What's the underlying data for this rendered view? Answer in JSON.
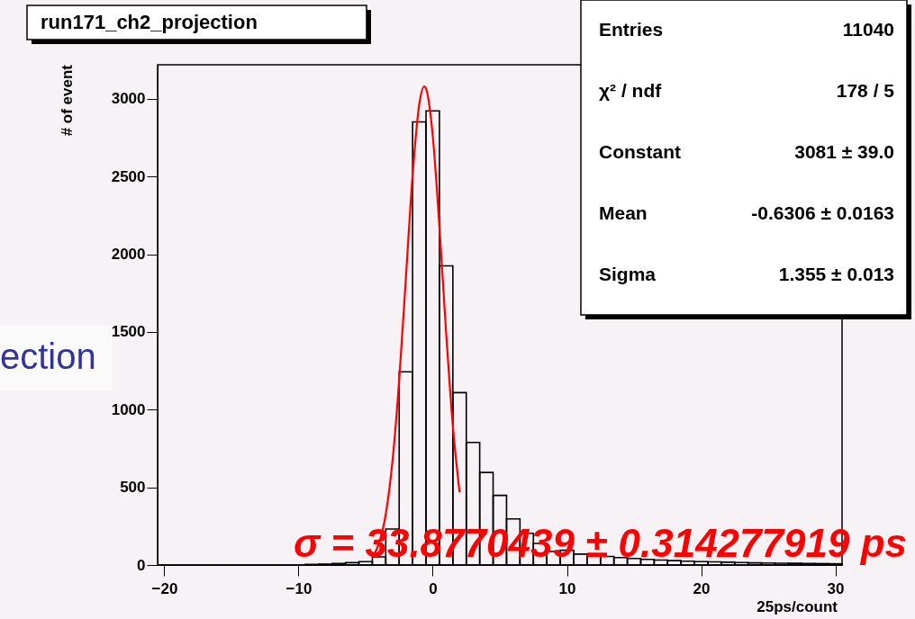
{
  "chart_data": {
    "type": "histogram",
    "title": "run171_ch2_projection",
    "xlabel": "25ps/count",
    "ylabel": "# of event",
    "color": "#000000",
    "bins": [
      -20.5,
      -19.5,
      -18.5,
      -17.5,
      -16.5,
      -15.5,
      -14.5,
      -13.5,
      -12.5,
      -11.5,
      -10.5,
      -9.5,
      -8.5,
      -7.5,
      -6.5,
      -5.5,
      -4.5,
      -3.5,
      -2.5,
      -1.5,
      -0.5,
      0.5,
      1.5,
      2.5,
      3.5,
      4.5,
      5.5,
      6.5,
      7.5,
      8.5,
      9.5,
      10.5,
      11.5,
      12.5,
      13.5,
      14.5,
      15.5,
      16.5,
      17.5,
      18.5,
      19.5,
      20.5,
      21.5,
      22.5,
      23.5,
      24.5,
      25.5,
      26.5,
      27.5,
      28.5,
      29.5,
      30.5
    ],
    "values": [
      0,
      0,
      0,
      0,
      0,
      0,
      0,
      0,
      0,
      0,
      0,
      4,
      6,
      10,
      15,
      22,
      52,
      232,
      1244,
      2852,
      2923,
      1926,
      1110,
      789,
      596,
      448,
      297,
      204,
      139,
      87,
      95,
      70,
      62,
      55,
      48,
      42,
      36,
      32,
      28,
      25,
      22,
      20,
      18,
      16,
      14,
      13,
      12,
      11,
      10,
      9,
      8
    ],
    "series": [
      {
        "type": "line",
        "color": "#ff0000",
        "x": [
          -4.5,
          -4.0,
          -3.5,
          -3.0,
          -2.5,
          -2.0,
          -1.5,
          -1.0,
          -0.63,
          -0.5,
          0.0,
          0.5,
          1.0,
          1.5,
          2.0
        ],
        "values": [
          52,
          140,
          327,
          668,
          1190,
          1849,
          2508,
          2969,
          3081,
          3067,
          2765,
          2175,
          1493,
          895,
          468
        ]
      }
    ],
    "xlim": [
      -20.5,
      30.5
    ],
    "xticks": [
      -20,
      -10,
      0,
      10,
      20,
      30
    ],
    "ylim": [
      0,
      3220
    ],
    "yticks": [
      0,
      500,
      1000,
      1500,
      2000,
      2500,
      3000
    ],
    "grid": false,
    "annotations": [
      "σ = 33.8770439 ± 0.314277919 ps",
      "ection",
      "Entries",
      "11040",
      "χ² / ndf",
      "178 / 5",
      "Constant",
      "3081 ± 39.0",
      "Mean",
      "-0.6306 ± 0.0163",
      "Sigma",
      "1.355 ± 0.013"
    ]
  }
}
